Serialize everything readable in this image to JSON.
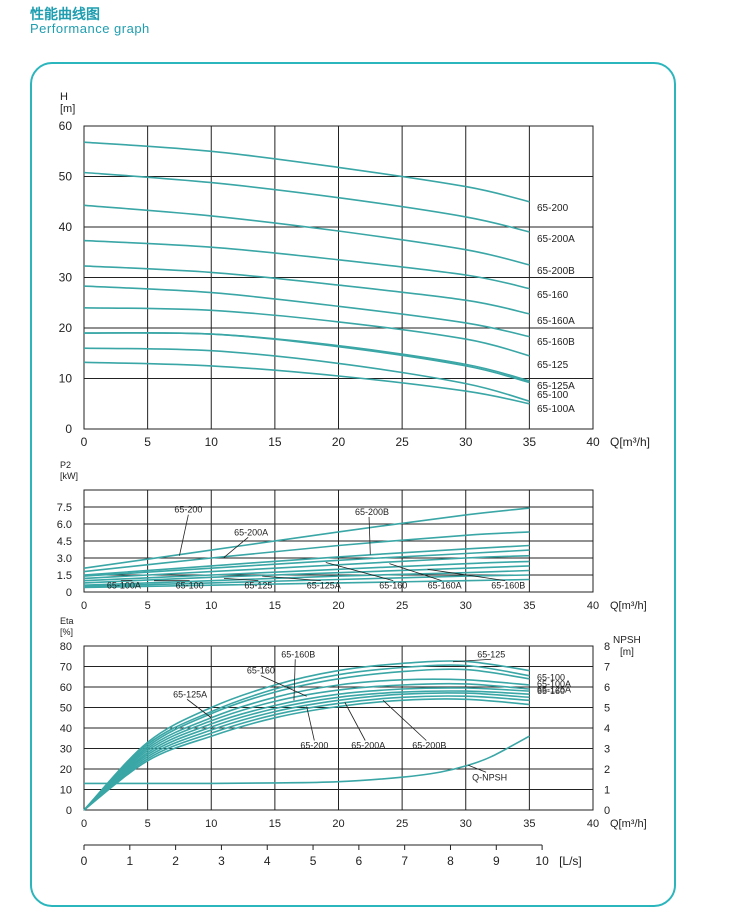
{
  "header": {
    "title_cn": "性能曲线图",
    "title_en": "Performance graph"
  },
  "colors": {
    "accent": "#2bb5bd",
    "curve": "#3aa6a6",
    "title": "#1f9eb0"
  },
  "chart_data": [
    {
      "type": "line",
      "id": "head",
      "ylabel_line1": "H",
      "ylabel_line2": "[m]",
      "xlabel": "Q[m³/h]",
      "xlim": [
        0,
        40
      ],
      "ylim": [
        0,
        60
      ],
      "xticks": [
        0,
        5,
        10,
        15,
        20,
        25,
        30,
        35,
        40
      ],
      "yticks": [
        0,
        10,
        20,
        30,
        40,
        50,
        60
      ],
      "grid": true,
      "series": [
        {
          "name": "65-200",
          "x": [
            0,
            10,
            20,
            30,
            35
          ],
          "y": [
            56.8,
            55,
            51.8,
            48,
            45
          ]
        },
        {
          "name": "65-200A",
          "x": [
            0,
            10,
            20,
            30,
            35
          ],
          "y": [
            50.8,
            48.8,
            45.8,
            42,
            39
          ]
        },
        {
          "name": "65-200B",
          "x": [
            0,
            10,
            20,
            30,
            35
          ],
          "y": [
            44.3,
            42.2,
            39.2,
            35.5,
            32.5
          ]
        },
        {
          "name": "65-160",
          "x": [
            0,
            10,
            20,
            30,
            35
          ],
          "y": [
            37.3,
            36,
            33.5,
            30.5,
            27.8
          ]
        },
        {
          "name": "65-160A",
          "x": [
            0,
            10,
            20,
            30,
            35
          ],
          "y": [
            32.3,
            31,
            28.5,
            25.5,
            22.8
          ]
        },
        {
          "name": "65-160B",
          "x": [
            0,
            10,
            20,
            30,
            35
          ],
          "y": [
            28.3,
            27,
            24.3,
            21,
            18.3
          ]
        },
        {
          "name": "65-125",
          "x": [
            0,
            10,
            20,
            30,
            35
          ],
          "y": [
            24,
            23.5,
            21.2,
            17.8,
            14.5
          ]
        },
        {
          "name": "65-125A",
          "x": [
            0,
            10,
            20,
            30,
            35
          ],
          "y": [
            19,
            18.8,
            16.5,
            12.8,
            9.5
          ]
        },
        {
          "name": "65-100",
          "x": [
            0,
            10,
            20,
            30,
            35
          ],
          "y": [
            19,
            18.8,
            16.3,
            12.5,
            9.2
          ]
        },
        {
          "name": "65-100A",
          "x": [
            0,
            10,
            20,
            30,
            35
          ],
          "y": [
            16,
            15.5,
            13,
            9,
            5.5
          ]
        },
        {
          "name": "",
          "x": [
            0,
            10,
            20,
            30,
            35
          ],
          "y": [
            13.2,
            12.5,
            10.5,
            7.5,
            5
          ]
        }
      ],
      "series_labels": [
        "65-200",
        "65-200A",
        "65-200B",
        "65-160",
        "65-160A",
        "65-160B",
        "65-125",
        "65-125A",
        "65-100",
        "65-100A"
      ]
    },
    {
      "type": "line",
      "id": "power",
      "ylabel_line1": "P2",
      "ylabel_line2": "[kW]",
      "xlabel": "Q[m³/h]",
      "xlim": [
        0,
        40
      ],
      "ylim": [
        0,
        9
      ],
      "xticks": [
        0,
        5,
        10,
        15,
        20,
        25,
        30,
        35,
        40
      ],
      "yticks": [
        0,
        1.5,
        3.0,
        4.5,
        6.0,
        7.5
      ],
      "ytick_labels": [
        "0",
        "1.5",
        "3.0",
        "4.5",
        "6.0",
        "7.5"
      ],
      "ylabel_top": "P2",
      "grid": true,
      "series": [
        {
          "name": "65-200",
          "x": [
            0,
            10,
            20,
            30,
            35
          ],
          "y": [
            2.1,
            3.7,
            5.3,
            6.8,
            7.4
          ]
        },
        {
          "name": "65-200A",
          "x": [
            0,
            10,
            20,
            30,
            35
          ],
          "y": [
            1.8,
            3.0,
            4.1,
            5.0,
            5.3
          ]
        },
        {
          "name": "65-200B",
          "x": [
            0,
            10,
            20,
            30,
            35
          ],
          "y": [
            1.5,
            2.3,
            3.1,
            3.8,
            4.1
          ]
        },
        {
          "name": "65-160",
          "x": [
            0,
            10,
            20,
            30,
            35
          ],
          "y": [
            1.4,
            2.1,
            2.8,
            3.4,
            3.7
          ]
        },
        {
          "name": "65-160A",
          "x": [
            0,
            10,
            20,
            30,
            35
          ],
          "y": [
            1.2,
            1.8,
            2.4,
            3.0,
            3.2
          ]
        },
        {
          "name": "65-160B",
          "x": [
            0,
            10,
            20,
            30,
            35
          ],
          "y": [
            1.0,
            1.5,
            2.0,
            2.5,
            2.7
          ]
        },
        {
          "name": "65-125",
          "x": [
            0,
            10,
            20,
            30,
            35
          ],
          "y": [
            0.8,
            1.3,
            1.7,
            2.1,
            2.3
          ]
        },
        {
          "name": "65-125A",
          "x": [
            0,
            10,
            20,
            30,
            35
          ],
          "y": [
            0.6,
            1.0,
            1.4,
            1.7,
            1.9
          ]
        },
        {
          "name": "65-100",
          "x": [
            0,
            10,
            20,
            30,
            35
          ],
          "y": [
            0.5,
            0.8,
            1.1,
            1.4,
            1.5
          ]
        },
        {
          "name": "65-100A",
          "x": [
            0,
            10,
            20,
            30,
            35
          ],
          "y": [
            0.4,
            0.6,
            0.8,
            1.0,
            1.1
          ]
        }
      ],
      "annotations": [
        {
          "text": "65-200",
          "label_x": 7.1,
          "label_y": 7.0,
          "tip_x": 7.5,
          "tip_y": 3.2
        },
        {
          "text": "65-200A",
          "label_x": 11.8,
          "label_y": 5.0,
          "tip_x": 11.0,
          "tip_y": 3.05
        },
        {
          "text": "65-200B",
          "label_x": 21.3,
          "label_y": 6.8,
          "tip_x": 22.5,
          "tip_y": 3.3
        },
        {
          "text": "65-100A",
          "label_x": 1.8,
          "label_y": 0.3,
          "tip_x": 3.8,
          "tip_y": 1.0
        },
        {
          "text": "65-100",
          "label_x": 7.2,
          "label_y": 0.3,
          "tip_x": 5.5,
          "tip_y": 1.0
        },
        {
          "text": "65-125",
          "label_x": 12.6,
          "label_y": 0.3,
          "tip_x": 11.0,
          "tip_y": 1.2
        },
        {
          "text": "65-125A",
          "label_x": 17.5,
          "label_y": 0.3,
          "tip_x": 14.0,
          "tip_y": 1.4
        },
        {
          "text": "65-160",
          "label_x": 23.2,
          "label_y": 0.3,
          "tip_x": 19.0,
          "tip_y": 2.6
        },
        {
          "text": "65-160A",
          "label_x": 27.0,
          "label_y": 0.3,
          "tip_x": 24.0,
          "tip_y": 2.5
        },
        {
          "text": "65-160B",
          "label_x": 32.0,
          "label_y": 0.3,
          "tip_x": 27.0,
          "tip_y": 2.0
        }
      ]
    },
    {
      "type": "line",
      "id": "efficiency",
      "ylabel_line1": "Eta",
      "ylabel_line2": "[%]",
      "ylabel2_line1": "NPSH",
      "ylabel2_line2": "[m]",
      "xlabel": "Q[m³/h]",
      "x2label": "[L/s]",
      "xlim": [
        0,
        40
      ],
      "ylim": [
        0,
        80
      ],
      "y2lim": [
        0,
        8
      ],
      "xticks": [
        0,
        5,
        10,
        15,
        20,
        25,
        30,
        35,
        40
      ],
      "x2ticks": [
        0,
        1,
        2,
        3,
        4,
        5,
        6,
        7,
        8,
        9,
        10
      ],
      "yticks": [
        0,
        10,
        20,
        30,
        40,
        50,
        60,
        70,
        80
      ],
      "y2ticks": [
        0,
        1,
        2,
        3,
        4,
        5,
        6,
        7,
        8
      ],
      "grid": true,
      "series": [
        {
          "name": "65-125",
          "x": [
            0,
            5,
            10,
            15,
            20,
            25,
            30,
            35
          ],
          "y": [
            0,
            33,
            50,
            61,
            68,
            71.5,
            72.5,
            68
          ]
        },
        {
          "name": "65-100",
          "x": [
            0,
            5,
            10,
            15,
            20,
            25,
            30,
            35
          ],
          "y": [
            0,
            32,
            48,
            59,
            66,
            69.5,
            70.5,
            65.5
          ]
        },
        {
          "name": "65-100A",
          "x": [
            0,
            5,
            10,
            15,
            20,
            25,
            30,
            35
          ],
          "y": [
            0,
            31,
            47,
            57.5,
            64,
            67.5,
            68.5,
            64
          ]
        },
        {
          "name": "65-125A",
          "x": [
            0,
            5,
            10,
            15,
            20,
            25,
            30,
            35
          ],
          "y": [
            0,
            30,
            45,
            55,
            61,
            63.5,
            63.5,
            61
          ]
        },
        {
          "name": "65-160",
          "x": [
            0,
            5,
            10,
            15,
            20,
            25,
            30,
            35
          ],
          "y": [
            0,
            29,
            43.5,
            53,
            58.5,
            61,
            61.5,
            59
          ]
        },
        {
          "name": "65-160B",
          "x": [
            0,
            5,
            10,
            15,
            20,
            25,
            30,
            35
          ],
          "y": [
            0,
            28,
            42,
            51,
            56.5,
            59,
            59.5,
            58
          ]
        },
        {
          "name": "65-160A",
          "x": [
            0,
            5,
            10,
            15,
            20,
            25,
            30,
            35
          ],
          "y": [
            0,
            27,
            40.5,
            49.5,
            55,
            57.5,
            58,
            56.5
          ]
        },
        {
          "name": "65-200",
          "x": [
            0,
            5,
            10,
            15,
            20,
            25,
            30,
            35
          ],
          "y": [
            0,
            26,
            39,
            48,
            53.5,
            56.5,
            57,
            55
          ]
        },
        {
          "name": "65-200A",
          "x": [
            0,
            5,
            10,
            15,
            20,
            25,
            30,
            35
          ],
          "y": [
            0,
            25,
            37.5,
            46.5,
            52,
            55,
            55.5,
            53.5
          ]
        },
        {
          "name": "65-200B",
          "x": [
            0,
            5,
            10,
            15,
            20,
            25,
            30,
            35
          ],
          "y": [
            0,
            24,
            36,
            45,
            50.5,
            53.5,
            54,
            51.5
          ]
        },
        {
          "name": "Q-NPSH",
          "axis": "right",
          "x": [
            0,
            5,
            10,
            15,
            20,
            25,
            28,
            30,
            32,
            35
          ],
          "y": [
            1.3,
            1.3,
            1.3,
            1.32,
            1.38,
            1.6,
            1.85,
            2.15,
            2.6,
            3.6
          ]
        }
      ],
      "right_labels": [
        "65-100",
        "65-100A",
        "65-125A",
        "65-160"
      ],
      "annotations": [
        {
          "text": "65-125",
          "label_x": 30.9,
          "label_y": 74.5,
          "tip_x": 29.0,
          "tip_y": 72.3
        },
        {
          "text": "65-160B",
          "label_x": 15.5,
          "label_y": 74.5,
          "tip_x": 16.5,
          "tip_y": 53.5
        },
        {
          "text": "65-160",
          "label_x": 12.8,
          "label_y": 66.5,
          "tip_x": 17.5,
          "tip_y": 55.5
        },
        {
          "text": "65-125A",
          "label_x": 7.0,
          "label_y": 55.0,
          "tip_x": 10.0,
          "tip_y": 45.0
        },
        {
          "text": "65-200",
          "label_x": 17.0,
          "label_y": 30.0,
          "tip_x": 17.5,
          "tip_y": 50.5
        },
        {
          "text": "65-200A",
          "label_x": 21.0,
          "label_y": 30.0,
          "tip_x": 20.5,
          "tip_y": 52.5
        },
        {
          "text": "65-200B",
          "label_x": 25.8,
          "label_y": 30.0,
          "tip_x": 23.5,
          "tip_y": 53.5
        },
        {
          "text": "Q-NPSH",
          "label_x": 30.5,
          "label_y": 14.5,
          "tip_x": 30.2,
          "tip_y": 21.8
        }
      ]
    }
  ]
}
